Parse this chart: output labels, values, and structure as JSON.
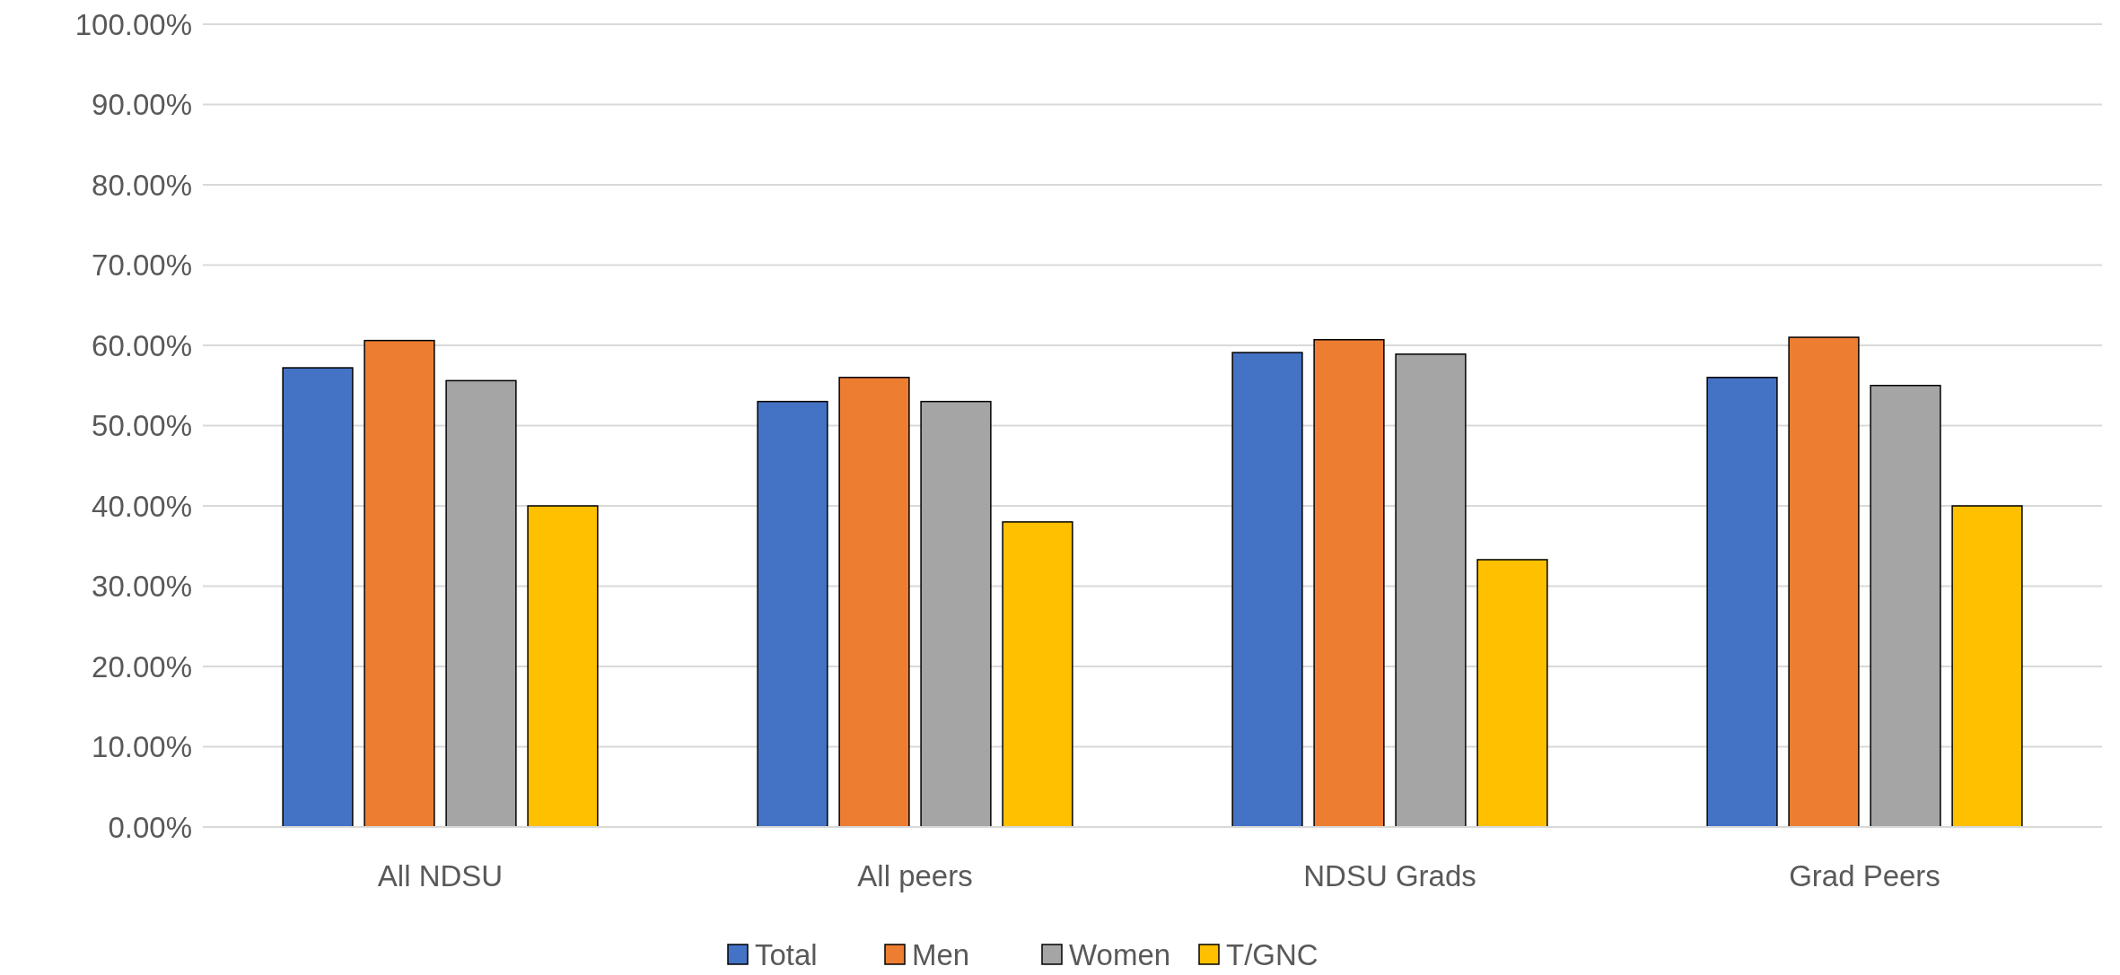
{
  "chart_data": {
    "type": "bar",
    "categories": [
      "All NDSU",
      "All peers",
      "NDSU Grads",
      "Grad Peers"
    ],
    "series": [
      {
        "name": "Total",
        "color": "#4472c4",
        "values": [
          57.2,
          53.0,
          59.1,
          56.0
        ]
      },
      {
        "name": "Men",
        "color": "#ed7d31",
        "values": [
          60.6,
          56.0,
          60.7,
          61.0
        ]
      },
      {
        "name": "Women",
        "color": "#a5a5a5",
        "values": [
          55.6,
          53.0,
          58.9,
          55.0
        ]
      },
      {
        "name": "T/GNC",
        "color": "#ffc000",
        "values": [
          40.0,
          38.0,
          33.3,
          40.0
        ]
      }
    ],
    "ylim": [
      0,
      100
    ],
    "yticks": [
      {
        "value": 0,
        "label": "0.00%"
      },
      {
        "value": 10,
        "label": "10.00%"
      },
      {
        "value": 20,
        "label": "20.00%"
      },
      {
        "value": 30,
        "label": "30.00%"
      },
      {
        "value": 40,
        "label": "40.00%"
      },
      {
        "value": 50,
        "label": "50.00%"
      },
      {
        "value": 60,
        "label": "60.00%"
      },
      {
        "value": 70,
        "label": "70.00%"
      },
      {
        "value": 80,
        "label": "80.00%"
      },
      {
        "value": 90,
        "label": "90.00%"
      },
      {
        "value": 100,
        "label": "100.00%"
      }
    ],
    "grid": "y",
    "legend": "bottom"
  }
}
